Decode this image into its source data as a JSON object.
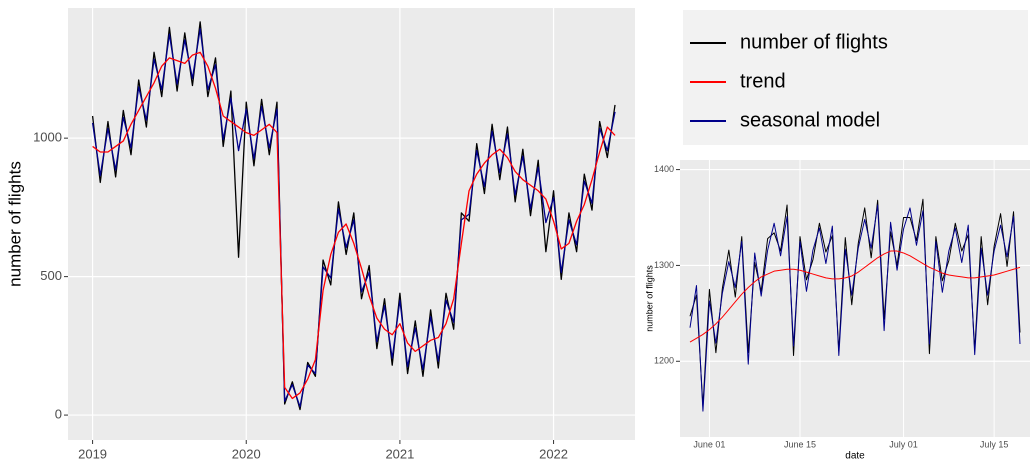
{
  "chart_data": [
    {
      "type": "line",
      "y_label": "number of flights",
      "x": [
        2019.0,
        2019.05,
        2019.1,
        2019.15,
        2019.2,
        2019.25,
        2019.3,
        2019.35,
        2019.4,
        2019.45,
        2019.5,
        2019.55,
        2019.6,
        2019.65,
        2019.7,
        2019.75,
        2019.8,
        2019.85,
        2019.9,
        2019.95,
        2020.0,
        2020.05,
        2020.1,
        2020.15,
        2020.2,
        2020.25,
        2020.3,
        2020.35,
        2020.4,
        2020.45,
        2020.5,
        2020.55,
        2020.6,
        2020.65,
        2020.7,
        2020.75,
        2020.8,
        2020.85,
        2020.9,
        2020.95,
        2021.0,
        2021.05,
        2021.1,
        2021.15,
        2021.2,
        2021.25,
        2021.3,
        2021.35,
        2021.4,
        2021.45,
        2021.5,
        2021.55,
        2021.6,
        2021.65,
        2021.7,
        2021.75,
        2021.8,
        2021.85,
        2021.9,
        2021.95,
        2022.0,
        2022.05,
        2022.1,
        2022.15,
        2022.2,
        2022.25,
        2022.3,
        2022.35,
        2022.4
      ],
      "series": [
        {
          "name": "number of flights",
          "color": "#000000",
          "values": [
            1080,
            840,
            1060,
            860,
            1100,
            940,
            1210,
            1040,
            1310,
            1150,
            1400,
            1170,
            1380,
            1190,
            1420,
            1150,
            1290,
            970,
            1170,
            570,
            1130,
            900,
            1140,
            940,
            1130,
            40,
            120,
            20,
            190,
            140,
            560,
            470,
            770,
            580,
            730,
            420,
            540,
            240,
            420,
            180,
            440,
            150,
            340,
            140,
            380,
            170,
            440,
            310,
            730,
            700,
            980,
            800,
            1050,
            850,
            1040,
            770,
            960,
            720,
            920,
            590,
            810,
            490,
            730,
            590,
            870,
            740,
            1060,
            930,
            1120
          ]
        },
        {
          "name": "trend",
          "color": "#ff0000",
          "values": [
            970,
            950,
            950,
            970,
            990,
            1050,
            1100,
            1150,
            1200,
            1260,
            1290,
            1280,
            1270,
            1300,
            1310,
            1260,
            1180,
            1080,
            1060,
            1040,
            1020,
            1010,
            1030,
            1050,
            1020,
            100,
            60,
            80,
            130,
            200,
            450,
            580,
            660,
            690,
            620,
            530,
            430,
            350,
            310,
            290,
            330,
            260,
            230,
            250,
            270,
            280,
            330,
            420,
            620,
            810,
            870,
            910,
            940,
            960,
            930,
            880,
            850,
            830,
            810,
            780,
            700,
            600,
            620,
            700,
            760,
            850,
            950,
            1040,
            1010
          ]
        },
        {
          "name": "seasonal model",
          "color": "#00008b",
          "values": [
            1055,
            865,
            1035,
            885,
            1075,
            965,
            1185,
            1065,
            1285,
            1175,
            1375,
            1195,
            1355,
            1215,
            1395,
            1175,
            1265,
            995,
            1145,
            955,
            1105,
            925,
            1115,
            965,
            1105,
            50,
            110,
            30,
            180,
            150,
            535,
            495,
            745,
            605,
            705,
            445,
            515,
            265,
            395,
            205,
            415,
            175,
            315,
            165,
            355,
            195,
            415,
            335,
            705,
            725,
            955,
            825,
            1025,
            875,
            1015,
            795,
            935,
            745,
            895,
            695,
            785,
            515,
            705,
            615,
            845,
            765,
            1035,
            955,
            1095
          ]
        }
      ],
      "draw_order": [
        0,
        2,
        1
      ],
      "xlim": [
        2018.84,
        2022.53
      ],
      "xticks": [
        2019,
        2020,
        2021,
        2022
      ],
      "ylim": [
        -90,
        1470
      ],
      "yticks": [
        0,
        500,
        1000
      ],
      "grid": true,
      "legend": "right"
    },
    {
      "type": "line",
      "x_label": "date",
      "y_label": "number of flights",
      "categories": [
        null,
        null,
        null,
        "June 01",
        null,
        null,
        null,
        null,
        null,
        null,
        null,
        null,
        null,
        null,
        null,
        null,
        null,
        "June 15",
        null,
        null,
        null,
        null,
        null,
        null,
        null,
        null,
        null,
        null,
        null,
        null,
        null,
        null,
        null,
        "July 01",
        null,
        null,
        null,
        null,
        null,
        null,
        null,
        null,
        null,
        null,
        null,
        null,
        null,
        "July 15",
        null,
        null,
        null,
        null
      ],
      "series": [
        {
          "color": "#000000",
          "values": [
            1247,
            1269,
            1153,
            1275,
            1209,
            1276,
            1316,
            1267,
            1330,
            1209,
            1303,
            1273,
            1328,
            1334,
            1315,
            1363,
            1206,
            1330,
            1285,
            1306,
            1344,
            1314,
            1331,
            1211,
            1329,
            1259,
            1323,
            1360,
            1308,
            1368,
            1244,
            1335,
            1300,
            1350,
            1350,
            1326,
            1369,
            1208,
            1330,
            1284,
            1305,
            1344,
            1315,
            1332,
            1212,
            1330,
            1259,
            1320,
            1354,
            1299,
            1356,
            1230
          ]
        },
        {
          "color": "#00008b",
          "values": [
            1235,
            1279,
            1148,
            1263,
            1219,
            1271,
            1304,
            1277,
            1325,
            1197,
            1313,
            1268,
            1316,
            1344,
            1310,
            1351,
            1216,
            1325,
            1273,
            1316,
            1339,
            1302,
            1341,
            1206,
            1317,
            1269,
            1318,
            1348,
            1318,
            1363,
            1232,
            1345,
            1295,
            1338,
            1360,
            1321,
            1357,
            1218,
            1325,
            1272,
            1315,
            1339,
            1303,
            1342,
            1207,
            1318,
            1269,
            1315,
            1342,
            1309,
            1351,
            1218
          ]
        },
        {
          "color": "#ff0000",
          "values": [
            1220,
            1224,
            1228,
            1233,
            1239,
            1246,
            1254,
            1262,
            1270,
            1277,
            1283,
            1288,
            1291,
            1294,
            1295,
            1296,
            1296,
            1295,
            1293,
            1291,
            1289,
            1287,
            1286,
            1286,
            1287,
            1289,
            1293,
            1298,
            1303,
            1308,
            1312,
            1315,
            1315,
            1313,
            1310,
            1306,
            1302,
            1298,
            1295,
            1292,
            1290,
            1289,
            1288,
            1287,
            1287,
            1288,
            1289,
            1290,
            1292,
            1294,
            1296,
            1298
          ]
        }
      ],
      "ylim": [
        1121,
        1410
      ],
      "yticks": [
        1200,
        1300,
        1400
      ],
      "grid": true
    }
  ]
}
